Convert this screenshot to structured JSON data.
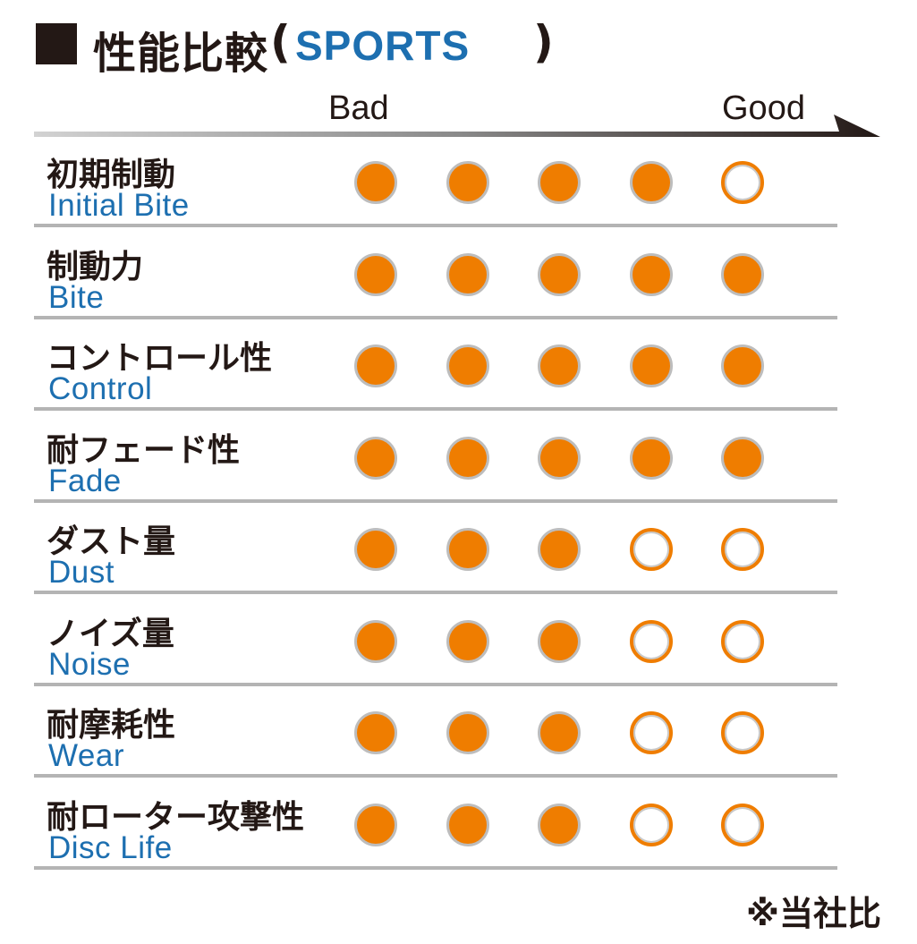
{
  "title": {
    "square": "■",
    "jp": "性能比較",
    "paren_open": "(",
    "en": "SPORTS",
    "paren_close": ")"
  },
  "scale": {
    "low": "Bad",
    "high": "Good"
  },
  "colors": {
    "filled": "#ef7d00",
    "english_label": "#1d6fb0",
    "title_accent": "#1d6fb0",
    "separator": "#b4b4b4",
    "text": "#231815"
  },
  "chart_data": {
    "type": "table",
    "scale_max": 5,
    "rows": [
      {
        "jp": "初期制動",
        "en": "Initial Bite",
        "rating": 4
      },
      {
        "jp": "制動力",
        "en": "Bite",
        "rating": 5
      },
      {
        "jp": "コントロール性",
        "en": "Control",
        "rating": 5
      },
      {
        "jp": "耐フェード性",
        "en": "Fade",
        "rating": 5
      },
      {
        "jp": "ダスト量",
        "en": "Dust",
        "rating": 3
      },
      {
        "jp": "ノイズ量",
        "en": "Noise",
        "rating": 3
      },
      {
        "jp": "耐摩耗性",
        "en": "Wear",
        "rating": 3
      },
      {
        "jp": "耐ローター攻撃性",
        "en": "Disc Life",
        "rating": 3
      }
    ]
  },
  "footnote": "※当社比"
}
